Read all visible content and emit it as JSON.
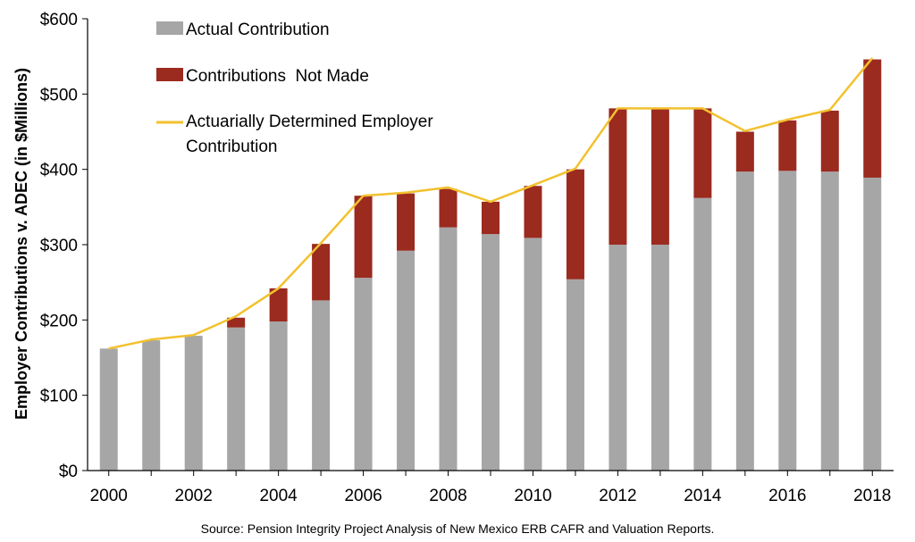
{
  "chart_data": {
    "type": "bar",
    "ylabel": "Employer Contributions v. ADEC (in $Millions)",
    "ylim": [
      0,
      600
    ],
    "y_ticks": [
      "$0",
      "$100",
      "$200",
      "$300",
      "$400",
      "$500",
      "$600"
    ],
    "x_tick_labels": [
      "2000",
      "2002",
      "2004",
      "2006",
      "2008",
      "2010",
      "2012",
      "2014",
      "2016",
      "2018"
    ],
    "categories": [
      "2000",
      "2001",
      "2002",
      "2003",
      "2004",
      "2005",
      "2006",
      "2007",
      "2008",
      "2009",
      "2010",
      "2011",
      "2012",
      "2013",
      "2014",
      "2015",
      "2016",
      "2017",
      "2018"
    ],
    "series": [
      {
        "name": "Actual Contribution",
        "kind": "stacked-bar",
        "color": "#a6a6a6",
        "values": [
          162,
          173,
          179,
          190,
          198,
          226,
          256,
          292,
          323,
          314,
          309,
          254,
          300,
          300,
          362,
          397,
          398,
          397,
          389
        ]
      },
      {
        "name": "Contributions  Not Made",
        "kind": "stacked-bar",
        "color": "#9b2a1f",
        "values": [
          0,
          0,
          0,
          13,
          44,
          75,
          109,
          76,
          51,
          43,
          69,
          146,
          181,
          181,
          119,
          53,
          67,
          81,
          157
        ]
      },
      {
        "name": "Actuarially Determined Employer Contribution",
        "name_lines": [
          "Actuarially Determined Employer",
          "Contribution"
        ],
        "kind": "line",
        "color": "#f2c12e",
        "values": [
          162,
          174,
          180,
          205,
          242,
          302,
          365,
          369,
          376,
          357,
          379,
          401,
          481,
          481,
          481,
          451,
          466,
          479,
          548
        ]
      }
    ],
    "legend_position": "top-left",
    "grid": false,
    "source_note": "Source: Pension Integrity Project Analysis of New Mexico ERB CAFR and Valuation Reports."
  }
}
